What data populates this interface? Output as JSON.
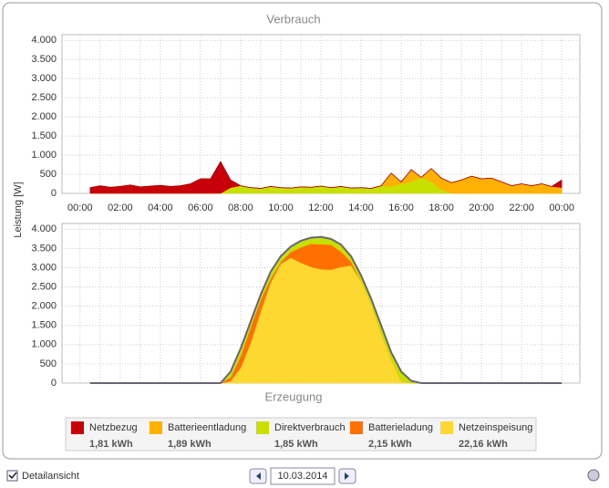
{
  "chart_data": [
    {
      "type": "area",
      "title": "Verbrauch",
      "stacked": true,
      "x": [
        0.5,
        1,
        1.5,
        2,
        2.5,
        3,
        3.5,
        4,
        4.5,
        5,
        5.5,
        6,
        6.5,
        7,
        7.5,
        8,
        8.5,
        9,
        9.5,
        10,
        10.5,
        11,
        11.5,
        12,
        12.5,
        13,
        13.5,
        14,
        14.5,
        15,
        15.5,
        16,
        16.5,
        17,
        17.5,
        18,
        18.5,
        19,
        19.5,
        20,
        20.5,
        21,
        21.5,
        22,
        22.5,
        23,
        23.5,
        24
      ],
      "series": [
        {
          "name": "Direktverbrauch",
          "color": "#c8e000",
          "values": [
            0,
            0,
            0,
            0,
            0,
            0,
            0,
            0,
            0,
            0,
            0,
            0,
            0,
            0,
            150,
            200,
            150,
            130,
            180,
            150,
            140,
            170,
            160,
            190,
            150,
            180,
            140,
            150,
            130,
            200,
            180,
            250,
            300,
            420,
            300,
            100,
            0,
            0,
            0,
            0,
            0,
            0,
            0,
            0,
            0,
            0,
            0,
            0
          ]
        },
        {
          "name": "Batterieentladung",
          "color": "#ffb000",
          "values": [
            0,
            0,
            0,
            0,
            0,
            0,
            0,
            0,
            0,
            0,
            0,
            0,
            0,
            0,
            0,
            0,
            0,
            0,
            0,
            0,
            0,
            0,
            0,
            0,
            0,
            0,
            0,
            0,
            0,
            0,
            350,
            50,
            320,
            0,
            350,
            300,
            280,
            350,
            450,
            380,
            400,
            300,
            200,
            250,
            200,
            250,
            180,
            150
          ]
        },
        {
          "name": "Netzbezug",
          "color": "#c8000a",
          "values": [
            150,
            200,
            160,
            180,
            220,
            170,
            190,
            210,
            180,
            200,
            250,
            380,
            380,
            830,
            200,
            0,
            0,
            0,
            0,
            0,
            0,
            0,
            0,
            0,
            0,
            0,
            0,
            0,
            0,
            0,
            0,
            0,
            0,
            0,
            0,
            0,
            0,
            0,
            0,
            0,
            0,
            0,
            0,
            0,
            0,
            0,
            0,
            200
          ]
        }
      ],
      "xlim": [
        -0.9,
        24.9
      ],
      "xticks": [
        {
          "value": 0,
          "label": "00:00"
        },
        {
          "value": 2,
          "label": "02:00"
        },
        {
          "value": 4,
          "label": "04:00"
        },
        {
          "value": 6,
          "label": "06:00"
        },
        {
          "value": 8,
          "label": "08:00"
        },
        {
          "value": 10,
          "label": "10:00"
        },
        {
          "value": 12,
          "label": "12:00"
        },
        {
          "value": 14,
          "label": "14:00"
        },
        {
          "value": 16,
          "label": "16:00"
        },
        {
          "value": 18,
          "label": "18:00"
        },
        {
          "value": 20,
          "label": "20:00"
        },
        {
          "value": 22,
          "label": "22:00"
        },
        {
          "value": 24,
          "label": "00:00"
        }
      ],
      "ylim": [
        0,
        4150
      ],
      "yticks": [
        0,
        500,
        {
          "value": 1000,
          "label": "1.000"
        },
        {
          "value": 1500,
          "label": "1.500"
        },
        {
          "value": 2000,
          "label": "2.000"
        },
        {
          "value": 2500,
          "label": "2.500"
        },
        {
          "value": 3000,
          "label": "3.000"
        },
        {
          "value": 3500,
          "label": "3.500"
        },
        {
          "value": 4000,
          "label": "4.000"
        }
      ],
      "grid": true
    },
    {
      "type": "area",
      "title": "Erzeugung",
      "stacked": true,
      "x": [
        0.5,
        1,
        1.5,
        2,
        2.5,
        3,
        3.5,
        4,
        4.5,
        5,
        5.5,
        6,
        6.5,
        7,
        7.5,
        8,
        8.5,
        9,
        9.5,
        10,
        10.5,
        11,
        11.5,
        12,
        12.5,
        13,
        13.5,
        14,
        14.5,
        15,
        15.5,
        16,
        16.5,
        17,
        17.5,
        18,
        18.5,
        19,
        19.5,
        20,
        20.5,
        21,
        21.5,
        22,
        22.5,
        23,
        23.5,
        24
      ],
      "series": [
        {
          "name": "Netzeinspeisung",
          "color": "#fcd830",
          "values": [
            0,
            0,
            0,
            0,
            0,
            0,
            0,
            0,
            0,
            0,
            0,
            0,
            0,
            0,
            50,
            400,
            1050,
            1870,
            2620,
            3100,
            3260,
            3130,
            3020,
            2960,
            2950,
            3020,
            3060,
            2650,
            2070,
            1300,
            620,
            50,
            0,
            0,
            0,
            0,
            0,
            0,
            0,
            0,
            0,
            0,
            0,
            0,
            0,
            0,
            0,
            0
          ]
        },
        {
          "name": "Batterieladung",
          "color": "#ff7000",
          "values": [
            0,
            0,
            0,
            0,
            0,
            0,
            0,
            0,
            0,
            0,
            0,
            0,
            0,
            0,
            100,
            300,
            400,
            300,
            100,
            50,
            150,
            400,
            600,
            650,
            650,
            400,
            100,
            0,
            0,
            0,
            0,
            0,
            0,
            0,
            0,
            0,
            0,
            0,
            0,
            0,
            0,
            0,
            0,
            0,
            0,
            0,
            0,
            0
          ]
        },
        {
          "name": "Direktverbrauch",
          "color": "#c8e000",
          "values": [
            0,
            0,
            0,
            0,
            0,
            0,
            0,
            0,
            0,
            0,
            0,
            0,
            0,
            0,
            150,
            200,
            150,
            130,
            180,
            150,
            140,
            170,
            160,
            190,
            150,
            180,
            140,
            150,
            130,
            200,
            180,
            250,
            60,
            0,
            0,
            0,
            0,
            0,
            0,
            0,
            0,
            0,
            0,
            0,
            0,
            0,
            0,
            0
          ]
        }
      ],
      "xlim": [
        -0.9,
        24.9
      ],
      "ylim": [
        0,
        4150
      ],
      "yticks": [
        0,
        500,
        {
          "value": 1000,
          "label": "1.000"
        },
        {
          "value": 1500,
          "label": "1.500"
        },
        {
          "value": 2000,
          "label": "2.000"
        },
        {
          "value": 2500,
          "label": "2.500"
        },
        {
          "value": 3000,
          "label": "3.000"
        },
        {
          "value": 3500,
          "label": "3.500"
        },
        {
          "value": 4000,
          "label": "4.000"
        }
      ],
      "grid": true
    }
  ],
  "ylabel": "Leistung [W]",
  "legend": [
    {
      "name": "Netzbezug",
      "color": "#c8000a",
      "energy": "1,81 kWh"
    },
    {
      "name": "Batterieentladung",
      "color": "#ffb000",
      "energy": "1,89 kWh"
    },
    {
      "name": "Direktverbrauch",
      "color": "#c8e000",
      "energy": "1,85 kWh"
    },
    {
      "name": "Batterieladung",
      "color": "#ff7000",
      "energy": "2,15 kWh"
    },
    {
      "name": "Netzeinspeisung",
      "color": "#fcd830",
      "energy": "22,16 kWh"
    }
  ],
  "controls": {
    "detail_label": "Detailansicht",
    "date": "10.03.2014"
  }
}
